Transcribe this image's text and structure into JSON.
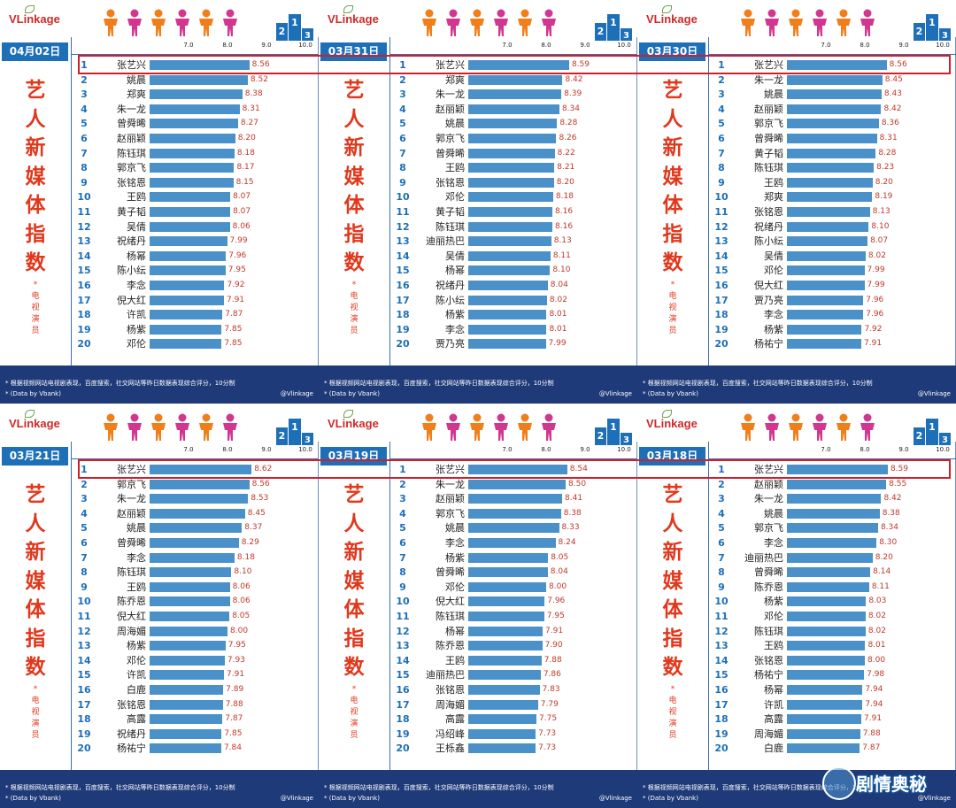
{
  "brand": {
    "logo": "VLinkage",
    "accent": "#e0381c",
    "header_blue": "#1d6fb7",
    "bar_color": "#4a90c9",
    "highlight": "#d11f2a"
  },
  "vertical_title": [
    "艺",
    "人",
    "新",
    "媒",
    "体",
    "指",
    "数"
  ],
  "vertical_subtitle": [
    "*",
    "电",
    "视",
    "演",
    "员"
  ],
  "footer": {
    "note": "* 根据视频网站电视剧表现，百度搜索，社交网站等昨日数据表现综合评分，10分制",
    "data_source": "* (Data by Vbank)",
    "weibo": "@Vlinkage"
  },
  "watermark": "剧情奥秘",
  "chart_data": [
    {
      "type": "bar",
      "date": "04月02日",
      "xlim": [
        6.0,
        10.0
      ],
      "ticks": [
        "7.0",
        "8.0",
        "9.0",
        "10.0"
      ],
      "ranks": [
        "1",
        "2",
        "3",
        "4",
        "5",
        "6",
        "7",
        "8",
        "9",
        "10",
        "11",
        "12",
        "13",
        "14",
        "15",
        "16",
        "17",
        "18",
        "19",
        "20"
      ],
      "categories": [
        "张艺兴",
        "姚晨",
        "郑爽",
        "朱一龙",
        "曾舜晞",
        "赵丽颖",
        "陈钰琪",
        "郭京飞",
        "张铭恩",
        "王鸥",
        "黄子韬",
        "吴倩",
        "祝绪丹",
        "杨幂",
        "陈小纭",
        "李念",
        "倪大红",
        "许凯",
        "杨紫",
        "邓伦"
      ],
      "values": [
        "8.56",
        "8.52",
        "8.38",
        "8.31",
        "8.27",
        "8.20",
        "8.18",
        "8.17",
        "8.15",
        "8.07",
        "8.07",
        "8.06",
        "7.99",
        "7.96",
        "7.95",
        "7.92",
        "7.91",
        "7.87",
        "7.85",
        "7.85"
      ]
    },
    {
      "type": "bar",
      "date": "03月31日",
      "xlim": [
        6.0,
        10.0
      ],
      "ticks": [
        "7.0",
        "8.0",
        "9.0",
        "10.0"
      ],
      "ranks": [
        "1",
        "2",
        "3",
        "4",
        "5",
        "6",
        "7",
        "8",
        "9",
        "10",
        "11",
        "12",
        "13",
        "14",
        "15",
        "16",
        "17",
        "18",
        "19",
        "20"
      ],
      "categories": [
        "张艺兴",
        "郑爽",
        "朱一龙",
        "赵丽颖",
        "姚晨",
        "郭京飞",
        "曾舜晞",
        "王鸥",
        "张铭恩",
        "邓伦",
        "黄子韬",
        "陈钰琪",
        "迪丽热巴",
        "吴倩",
        "杨幂",
        "祝绪丹",
        "陈小纭",
        "杨紫",
        "李念",
        "贾乃亮"
      ],
      "values": [
        "8.59",
        "8.42",
        "8.39",
        "8.34",
        "8.28",
        "8.26",
        "8.22",
        "8.21",
        "8.20",
        "8.18",
        "8.16",
        "8.16",
        "8.13",
        "8.11",
        "8.10",
        "8.04",
        "8.02",
        "8.01",
        "8.01",
        "7.99"
      ]
    },
    {
      "type": "bar",
      "date": "03月30日",
      "xlim": [
        6.0,
        10.0
      ],
      "ticks": [
        "7.0",
        "8.0",
        "9.0",
        "10.0"
      ],
      "ranks": [
        "1",
        "2",
        "3",
        "4",
        "5",
        "6",
        "7",
        "8",
        "9",
        "10",
        "11",
        "12",
        "13",
        "14",
        "15",
        "16",
        "17",
        "18",
        "19",
        "20"
      ],
      "categories": [
        "张艺兴",
        "朱一龙",
        "姚晨",
        "赵丽颖",
        "郭京飞",
        "曾舜晞",
        "黄子韬",
        "陈钰琪",
        "王鸥",
        "郑爽",
        "张铭恩",
        "祝绪丹",
        "陈小纭",
        "吴倩",
        "邓伦",
        "倪大红",
        "贾乃亮",
        "李念",
        "杨紫",
        "杨祐宁"
      ],
      "values": [
        "8.56",
        "8.45",
        "8.43",
        "8.42",
        "8.36",
        "8.31",
        "8.28",
        "8.23",
        "8.20",
        "8.19",
        "8.13",
        "8.10",
        "8.07",
        "8.02",
        "7.99",
        "7.99",
        "7.96",
        "7.96",
        "7.92",
        "7.91"
      ]
    },
    {
      "type": "bar",
      "date": "03月21日",
      "xlim": [
        6.0,
        10.0
      ],
      "ticks": [
        "7.0",
        "8.0",
        "9.0",
        "10.0"
      ],
      "ranks": [
        "1",
        "2",
        "3",
        "4",
        "5",
        "6",
        "7",
        "8",
        "9",
        "10",
        "11",
        "12",
        "13",
        "14",
        "15",
        "16",
        "17",
        "18",
        "19",
        "20"
      ],
      "categories": [
        "张艺兴",
        "郭京飞",
        "朱一龙",
        "赵丽颖",
        "姚晨",
        "曾舜晞",
        "李念",
        "陈钰琪",
        "王鸥",
        "陈乔恩",
        "倪大红",
        "周海媚",
        "杨紫",
        "邓伦",
        "许凯",
        "白鹿",
        "张铭恩",
        "高露",
        "祝绪丹",
        "杨祐宁"
      ],
      "values": [
        "8.62",
        "8.56",
        "8.53",
        "8.45",
        "8.37",
        "8.29",
        "8.18",
        "8.10",
        "8.06",
        "8.06",
        "8.05",
        "8.00",
        "7.95",
        "7.93",
        "7.91",
        "7.89",
        "7.88",
        "7.87",
        "7.85",
        "7.84"
      ]
    },
    {
      "type": "bar",
      "date": "03月19日",
      "xlim": [
        6.0,
        10.0
      ],
      "ticks": [
        "7.0",
        "8.0",
        "9.0",
        "10.0"
      ],
      "ranks": [
        "1",
        "2",
        "3",
        "4",
        "5",
        "6",
        "7",
        "8",
        "9",
        "10",
        "11",
        "12",
        "13",
        "14",
        "15",
        "16",
        "17",
        "18",
        "19",
        "20"
      ],
      "categories": [
        "张艺兴",
        "朱一龙",
        "赵丽颖",
        "郭京飞",
        "姚晨",
        "李念",
        "杨紫",
        "曾舜晞",
        "邓伦",
        "倪大红",
        "陈钰琪",
        "杨幂",
        "陈乔恩",
        "王鸥",
        "迪丽热巴",
        "张铭恩",
        "周海媚",
        "高露",
        "冯绍峰",
        "王栎鑫"
      ],
      "values": [
        "8.54",
        "8.50",
        "8.41",
        "8.38",
        "8.33",
        "8.24",
        "8.05",
        "8.04",
        "8.00",
        "7.96",
        "7.95",
        "7.91",
        "7.90",
        "7.88",
        "7.86",
        "7.83",
        "7.79",
        "7.75",
        "7.73",
        "7.73"
      ]
    },
    {
      "type": "bar",
      "date": "03月18日",
      "xlim": [
        6.0,
        10.0
      ],
      "ticks": [
        "7.0",
        "8.0",
        "9.0",
        "10.0"
      ],
      "ranks": [
        "1",
        "2",
        "3",
        "4",
        "5",
        "6",
        "7",
        "8",
        "9",
        "10",
        "11",
        "12",
        "13",
        "14",
        "15",
        "16",
        "17",
        "18",
        "19",
        "20"
      ],
      "categories": [
        "张艺兴",
        "赵丽颖",
        "朱一龙",
        "姚晨",
        "郭京飞",
        "李念",
        "迪丽热巴",
        "曾舜晞",
        "陈乔恩",
        "杨紫",
        "邓伦",
        "陈钰琪",
        "王鸥",
        "张铭恩",
        "杨祐宁",
        "杨幂",
        "许凯",
        "高露",
        "周海媚",
        "白鹿"
      ],
      "values": [
        "8.59",
        "8.55",
        "8.42",
        "8.38",
        "8.34",
        "8.30",
        "8.20",
        "8.14",
        "8.11",
        "8.03",
        "8.02",
        "8.02",
        "8.01",
        "8.00",
        "7.98",
        "7.94",
        "7.94",
        "7.91",
        "7.88",
        "7.87"
      ]
    }
  ]
}
